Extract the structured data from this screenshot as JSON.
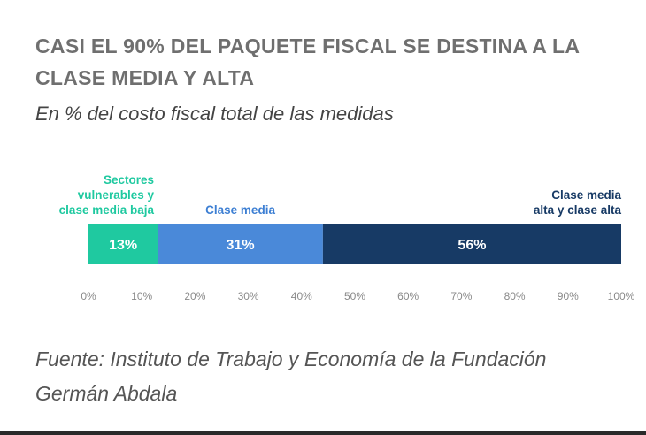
{
  "header": {
    "title": "CASI EL 90% DEL PAQUETE FISCAL SE DESTINA A LA CLASE MEDIA Y ALTA",
    "subtitle": "En % del costo fiscal total de las medidas"
  },
  "source": {
    "text": "Fuente: Instituto de Trabajo y Economía de la Fundación Germán Abdala"
  },
  "chart_data": {
    "type": "bar",
    "orientation": "horizontal-stacked",
    "segments": [
      {
        "label_lines": [
          "Sectores",
          "vulnerables y",
          "clase media baja"
        ],
        "value": 13,
        "value_label": "13%",
        "color": "#1fc9a0",
        "label_color": "#1fc9a0",
        "text_color": "#ffffff"
      },
      {
        "label_lines": [
          "Clase media"
        ],
        "value": 31,
        "value_label": "31%",
        "color": "#4a89d9",
        "label_color": "#3d7fd3",
        "text_color": "#ffffff"
      },
      {
        "label_lines": [
          "Clase media",
          "alta y clase alta"
        ],
        "value": 56,
        "value_label": "56%",
        "color": "#173a65",
        "label_color": "#173a65",
        "text_color": "#ffffff"
      }
    ],
    "ticks": [
      "0%",
      "10%",
      "20%",
      "30%",
      "40%",
      "50%",
      "60%",
      "70%",
      "80%",
      "90%",
      "100%"
    ],
    "xlim": [
      0,
      100
    ],
    "grid": false,
    "legend": "none"
  }
}
